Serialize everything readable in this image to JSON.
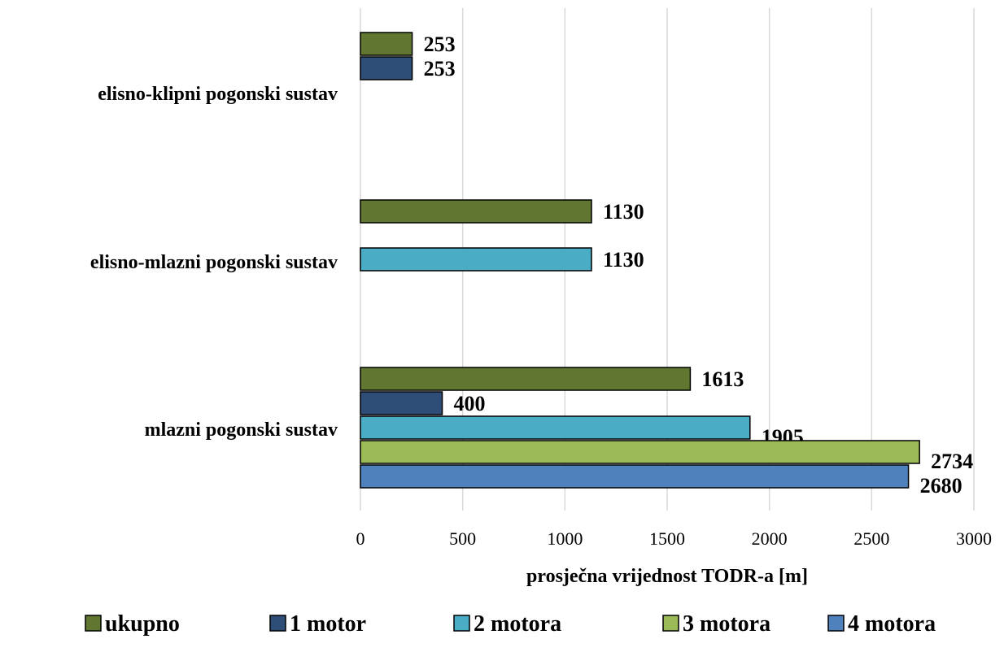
{
  "chart_data": {
    "type": "bar",
    "orientation": "horizontal",
    "categories": [
      "elisno-klipni pogonski sustav",
      "elisno-mlazni pogonski sustav",
      "mlazni pogonski sustav"
    ],
    "series": [
      {
        "name": "ukupno",
        "color": "#617731",
        "values": [
          253,
          1130,
          1613
        ]
      },
      {
        "name": "1 motor",
        "color": "#2E4E77",
        "values": [
          253,
          null,
          400
        ]
      },
      {
        "name": "2 motora",
        "color": "#4BACC6",
        "values": [
          null,
          1130,
          1905
        ]
      },
      {
        "name": "3 motora",
        "color": "#9BBB59",
        "values": [
          null,
          null,
          2734
        ]
      },
      {
        "name": "4 motora",
        "color": "#4F81BD",
        "values": [
          null,
          null,
          2680
        ]
      }
    ],
    "xlabel": "prosječna vrijednost TODR-a [m]",
    "xlim": [
      0,
      3000
    ],
    "xticks": [
      0,
      500,
      1000,
      1500,
      2000,
      2500,
      3000
    ],
    "grid": "vertical",
    "legend": "bottom"
  }
}
